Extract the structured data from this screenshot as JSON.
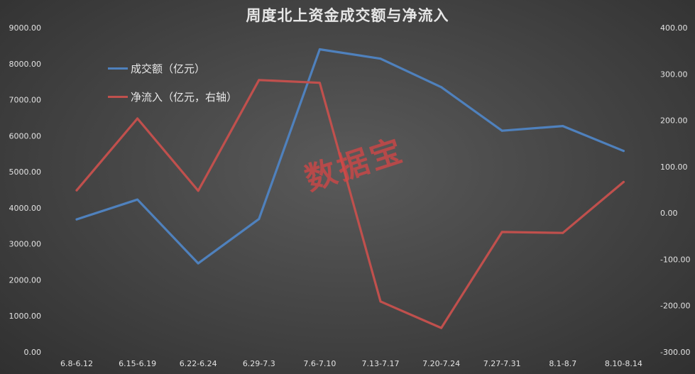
{
  "chart_data": {
    "type": "line",
    "title": "周度北上资金成交额与净流入",
    "categories": [
      "6.8-6.12",
      "6.15-6.19",
      "6.22-6.24",
      "6.29-7.3",
      "7.6-7.10",
      "7.13-7.17",
      "7.20-7.24",
      "7.27-7.31",
      "8.1-8.7",
      "8.10-8.14"
    ],
    "y_left": {
      "range": [
        0,
        9000
      ],
      "ticks": [
        "0.00",
        "1000.00",
        "2000.00",
        "3000.00",
        "4000.00",
        "5000.00",
        "6000.00",
        "7000.00",
        "8000.00",
        "9000.00"
      ]
    },
    "y_right": {
      "range": [
        -300,
        400
      ],
      "ticks": [
        "-300.00",
        "-200.00",
        "-100.00",
        "0.00",
        "100.00",
        "200.00",
        "300.00",
        "400.00"
      ]
    },
    "series": [
      {
        "name": "成交额（亿元）",
        "axis": "left",
        "color": "#4f81bd",
        "values": [
          3680,
          4230,
          2460,
          3690,
          8400,
          8140,
          7350,
          6140,
          6270,
          5580
        ]
      },
      {
        "name": "净流入（亿元，右轴）",
        "axis": "right",
        "color": "#c0504d",
        "values": [
          49,
          204,
          48,
          287,
          281,
          -191,
          -248,
          -41,
          -43,
          67
        ]
      }
    ],
    "legend_position": "top-left",
    "grid": false
  },
  "watermark": "数据宝"
}
